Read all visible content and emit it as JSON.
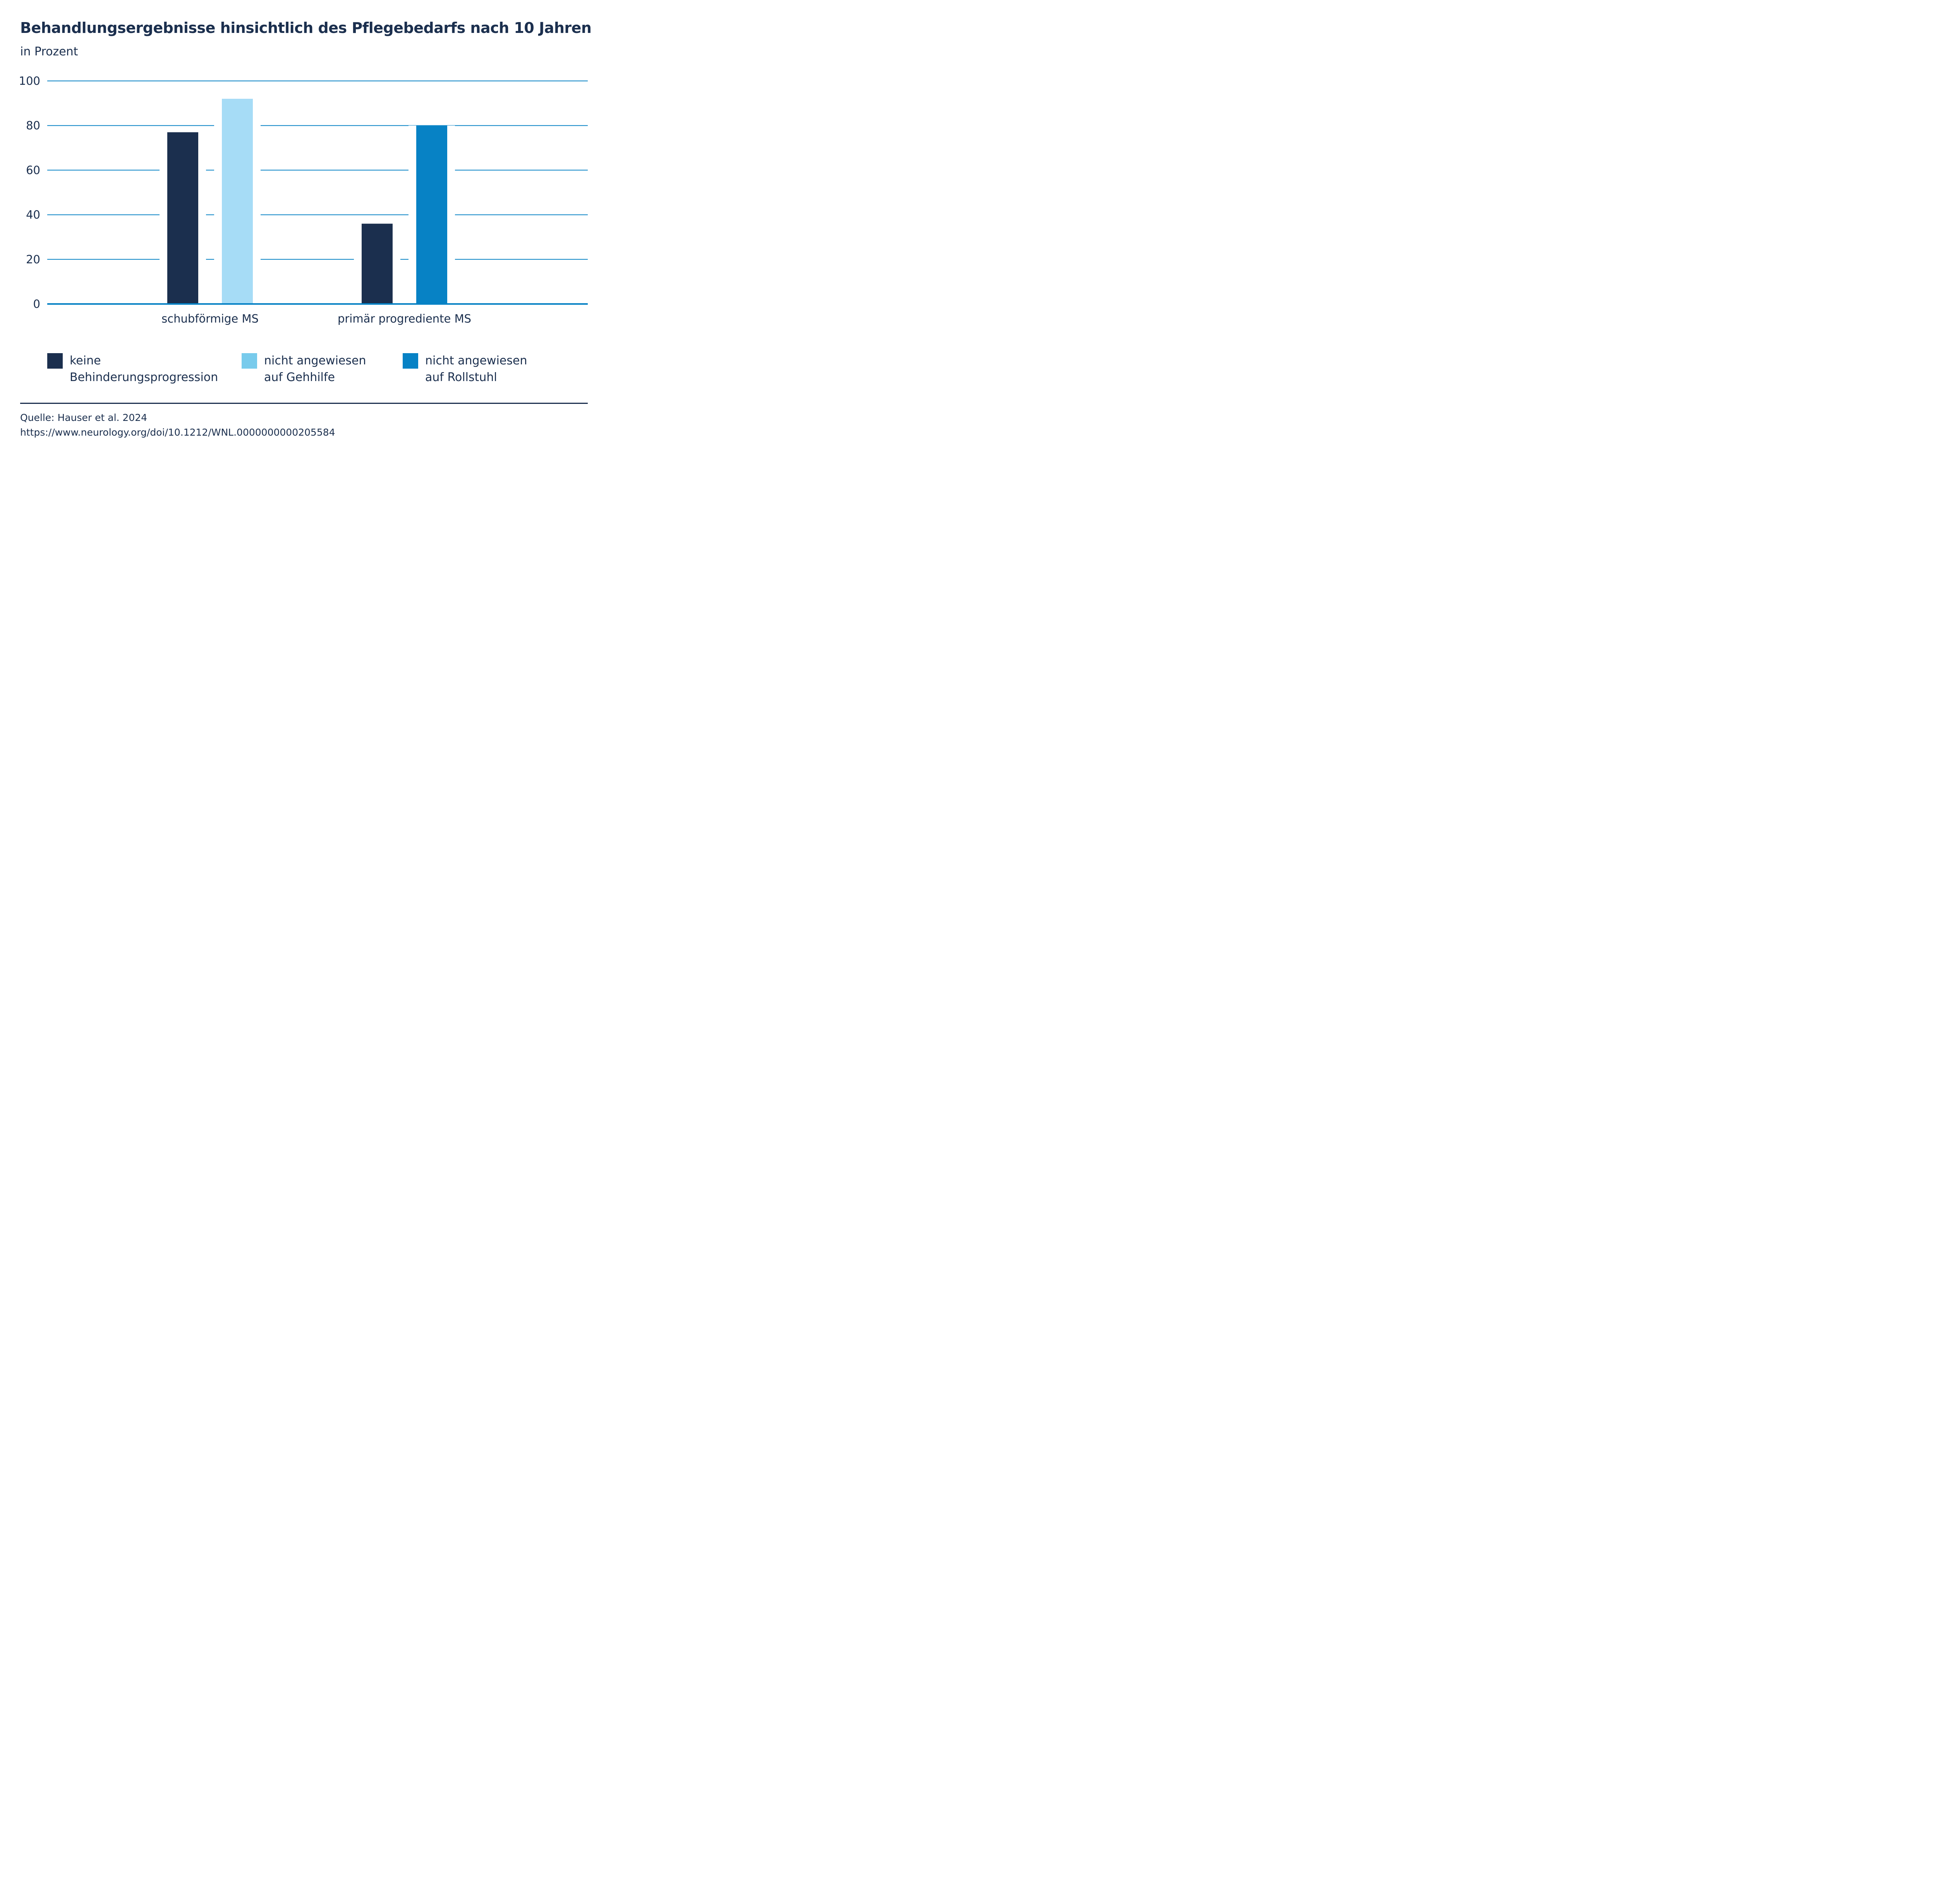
{
  "header": {
    "title": "Behandlungsergebnisse hinsichtlich des Pflegebedarfs nach 10 Jahren",
    "subtitle": "in Prozent"
  },
  "colors": {
    "text": "#1b2f4e",
    "gridline": "#0782c5",
    "keine_behinderungsprogression": "#1b2f4e",
    "nicht_angewiesen_gehhilfe_bar": "#a6dcf6",
    "nicht_angewiesen_gehhilfe_legend": "#78cbec",
    "nicht_angewiesen_rollstuhl": "#0782c5"
  },
  "chart_data": {
    "type": "bar",
    "title": "Behandlungsergebnisse hinsichtlich des Pflegebedarfs nach 10 Jahren",
    "subtitle": "in Prozent",
    "xlabel": "",
    "ylabel": "in Prozent",
    "ylim": [
      0,
      100
    ],
    "yticks": [
      0,
      20,
      40,
      60,
      80,
      100
    ],
    "grid": true,
    "categories": [
      "schubförmige MS",
      "primär progrediente MS"
    ],
    "groups": [
      {
        "category": "schubförmige MS",
        "bars": [
          {
            "series": "keine Behinderungsprogression",
            "value": 77
          },
          {
            "series": "nicht angewiesen auf Gehhilfe",
            "value": 92
          }
        ]
      },
      {
        "category": "primär progrediente MS",
        "bars": [
          {
            "series": "keine Behinderungsprogression",
            "value": 36
          },
          {
            "series": "nicht angewiesen auf Rollstuhl",
            "value": 80
          }
        ]
      }
    ],
    "series": [
      {
        "name": "keine Behinderungsprogression",
        "values": [
          77,
          36
        ]
      },
      {
        "name": "nicht angewiesen auf Gehhilfe",
        "values": [
          92,
          null
        ]
      },
      {
        "name": "nicht angewiesen auf Rollstuhl",
        "values": [
          null,
          80
        ]
      }
    ],
    "legend_position": "bottom"
  },
  "legend": {
    "items": [
      {
        "lines": [
          "keine",
          "Behinderungsprogression"
        ]
      },
      {
        "lines": [
          "nicht angewiesen",
          "auf Gehhilfe"
        ]
      },
      {
        "lines": [
          "nicht angewiesen",
          "auf Rollstuhl"
        ]
      }
    ]
  },
  "source": {
    "line1": "Quelle: Hauser et al. 2024",
    "line2": "https://www.neurology.org/doi/10.1212/WNL.0000000000205584"
  }
}
